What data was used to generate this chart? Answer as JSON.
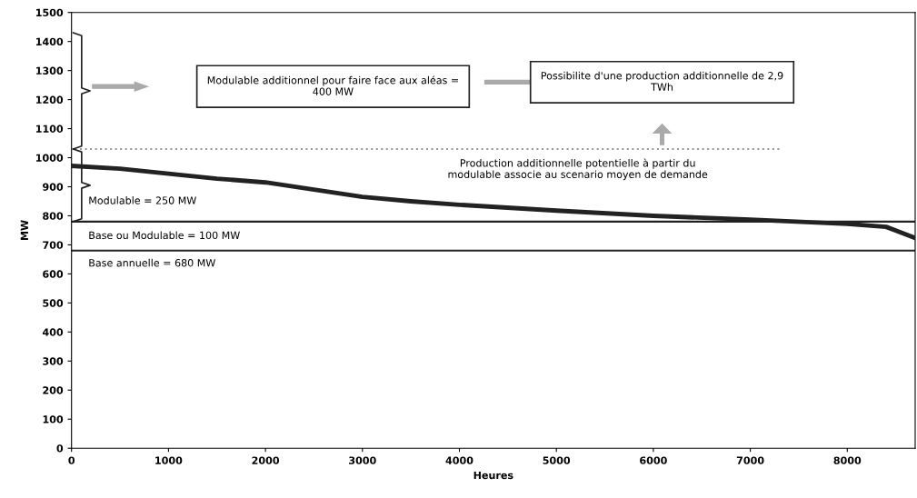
{
  "chart_data": {
    "type": "line",
    "xlabel": "Heures",
    "ylabel": "MW",
    "x": [
      0,
      500,
      1000,
      1500,
      2000,
      2500,
      3000,
      3500,
      4000,
      5000,
      6000,
      7000,
      8000,
      8400,
      8690
    ],
    "series": [
      {
        "color": "#222222",
        "values": [
          972,
          962,
          945,
          928,
          915,
          890,
          865,
          850,
          838,
          818,
          800,
          787,
          772,
          762,
          725
        ]
      }
    ],
    "xlim": [
      0,
      8700
    ],
    "ylim": [
      0,
      1500
    ],
    "xticks": [
      0,
      1000,
      2000,
      3000,
      4000,
      5000,
      6000,
      7000,
      8000
    ],
    "yticks": [
      0,
      100,
      200,
      300,
      400,
      500,
      600,
      700,
      800,
      900,
      1000,
      1100,
      1200,
      1300,
      1400,
      1500
    ],
    "grid": false,
    "legend": false,
    "marker": "none",
    "line_style": "solid",
    "ref_lines": [
      {
        "axis": "y",
        "value": 680,
        "label": "Base annuelle = 680 MW",
        "color": "#222222",
        "line_style": "solid"
      },
      {
        "axis": "y",
        "value": 780,
        "color": "#222222",
        "line_style": "solid"
      },
      {
        "axis": "y",
        "value": 1030,
        "color": "#999999",
        "line_style": "dotted"
      }
    ],
    "annotations": [
      "Base ou Modulable = 100 MW",
      "Modulable = 250 MW",
      "Modulable additionnel pour faire face aux aléas = 400 MW",
      "Possibilite d'une production additionnelle de 2,9 TWh",
      "Production additionnelle potentielle à partir du modulable associe au scenario moyen de demande"
    ]
  }
}
